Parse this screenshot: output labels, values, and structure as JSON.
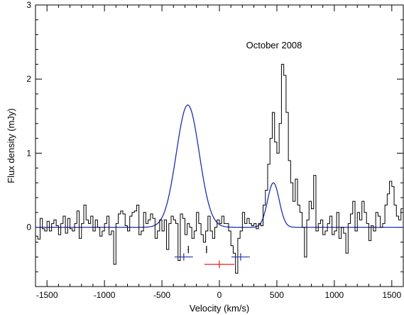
{
  "chart_data": {
    "type": "line",
    "annotation": "October 2008",
    "xlabel": "Velocity (km/s)",
    "ylabel": "Flux density (mJy)",
    "xlim": [
      -1600,
      1600
    ],
    "ylim": [
      -0.8,
      3.0
    ],
    "xticks": [
      -1500,
      -1000,
      -500,
      0,
      500,
      1000,
      1500
    ],
    "yticks": [
      0,
      1,
      2,
      3
    ],
    "grid": false,
    "legend": "none",
    "colors": {
      "spectrum": "#000000",
      "fit": "#1f2fb0",
      "blue_marker": "#1f2fb0",
      "red_marker": "#e02020"
    },
    "series": [
      {
        "style": "histogram-step",
        "bin_width": 20,
        "x_start": -1600,
        "values": [
          -0.12,
          -0.16,
          0.12,
          -0.02,
          -0.05,
          0.08,
          -0.05,
          0.05,
          0.1,
          0.02,
          -0.1,
          0.05,
          0.15,
          -0.08,
          0.12,
          -0.02,
          -0.05,
          0.05,
          0.22,
          -0.15,
          0.05,
          0.3,
          0.1,
          0.05,
          0.15,
          -0.05,
          0.1,
          0.0,
          -0.12,
          -0.05,
          0.05,
          0.15,
          -0.1,
          -0.05,
          -0.5,
          0.05,
          0.18,
          0.22,
          0.18,
          0.02,
          -0.05,
          0.15,
          0.2,
          0.22,
          0.3,
          -0.1,
          -0.05,
          0.2,
          0.05,
          0.1,
          0.18,
          0.12,
          -0.15,
          -0.05,
          0.1,
          -0.05,
          0.1,
          -0.3,
          0.05,
          0.15,
          0.1,
          0.05,
          -0.45,
          0.18,
          0.12,
          -0.1,
          0.05,
          0.0,
          -0.15,
          -0.05,
          0.2,
          0.05,
          -0.1,
          -0.2,
          -0.05,
          0.15,
          -0.05,
          -0.15,
          0.0,
          0.1,
          0.05,
          0.15,
          0.05,
          0.05,
          -0.05,
          -0.25,
          -0.35,
          -0.62,
          -0.15,
          -0.05,
          0.2,
          0.05,
          0.12,
          0.05,
          0.02,
          0.05,
          -0.02,
          0.05,
          0.02,
          0.3,
          0.5,
          0.85,
          1.2,
          1.55,
          1.15,
          1.0,
          1.4,
          2.2,
          2.05,
          1.55,
          0.9,
          0.6,
          0.35,
          0.65,
          0.3,
          0.2,
          0.0,
          -0.4,
          0.1,
          0.35,
          0.25,
          0.7,
          -0.05,
          0.05,
          0.1,
          -0.1,
          -0.05,
          0.05,
          0.15,
          -0.1,
          -0.05,
          0.2,
          -0.15,
          0.0,
          -0.08,
          -0.35,
          0.05,
          0.18,
          0.35,
          -0.05,
          0.2,
          0.1,
          0.35,
          0.2,
          0.05,
          -0.18,
          0.02,
          -0.05,
          0.2,
          0.15,
          0.0,
          0.05,
          0.3,
          0.45,
          0.62,
          0.55,
          0.3,
          0.15,
          0.1,
          0.25,
          0.12,
          0.05,
          0.03,
          0.0,
          0.05,
          0.02,
          -0.05,
          0.0,
          0.05,
          -0.15,
          -0.05,
          0.05,
          -0.05,
          -0.2,
          -0.15,
          0.05,
          0.15,
          -0.1,
          0.05,
          -0.2,
          -0.12,
          -0.15,
          0.18,
          -0.1,
          -0.05,
          0.1,
          0.05,
          0.0,
          -0.15,
          -0.05,
          0.05,
          0.0,
          -0.05,
          -0.15,
          -0.1,
          0.05,
          -0.05,
          0.1
        ]
      },
      {
        "style": "gaussian-fit",
        "baseline": 0.0,
        "components": [
          {
            "amplitude": 1.65,
            "center": -275,
            "fwhm": 235
          },
          {
            "amplitude": 0.6,
            "center": 470,
            "fwhm": 120
          }
        ]
      }
    ],
    "markers": [
      {
        "color": "black",
        "x": -270,
        "y": -0.3,
        "xerr": 5,
        "yerr": 0.05
      },
      {
        "color": "black",
        "x": -112,
        "y": -0.3,
        "xerr": 5,
        "yerr": 0.05
      },
      {
        "color": "blue",
        "x": -310,
        "y": -0.4,
        "xerr": 80,
        "yerr": 0.05
      },
      {
        "color": "blue",
        "x": 185,
        "y": -0.4,
        "xerr": 80,
        "yerr": 0.05
      },
      {
        "color": "red",
        "x": 0,
        "y": -0.5,
        "xerr": 130,
        "yerr": 0.05
      }
    ]
  }
}
